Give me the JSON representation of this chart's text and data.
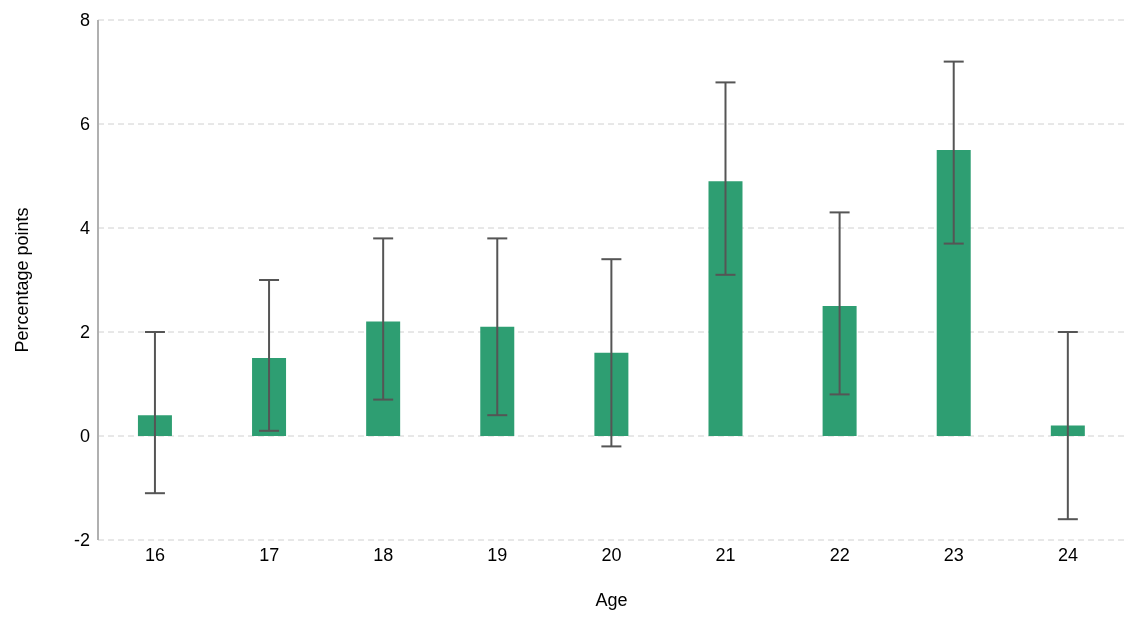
{
  "chart_data": {
    "type": "bar",
    "xlabel": "Age",
    "ylabel": "Percentage points",
    "categories": [
      "16",
      "17",
      "18",
      "19",
      "20",
      "21",
      "22",
      "23",
      "24"
    ],
    "values": [
      0.4,
      1.5,
      2.2,
      2.1,
      1.6,
      4.9,
      2.5,
      5.5,
      0.2
    ],
    "errors": [
      [
        -1.1,
        2.0
      ],
      [
        0.1,
        3.0
      ],
      [
        0.7,
        3.8
      ],
      [
        0.4,
        3.8
      ],
      [
        -0.2,
        3.4
      ],
      [
        3.1,
        6.8
      ],
      [
        0.8,
        4.3
      ],
      [
        3.7,
        7.2
      ],
      [
        -1.6,
        2.0
      ]
    ],
    "color": "#2e9e72",
    "ylim": [
      -2,
      8
    ],
    "yticks": [
      -2,
      0,
      2,
      4,
      6,
      8
    ],
    "grid": "y",
    "legend": false
  }
}
